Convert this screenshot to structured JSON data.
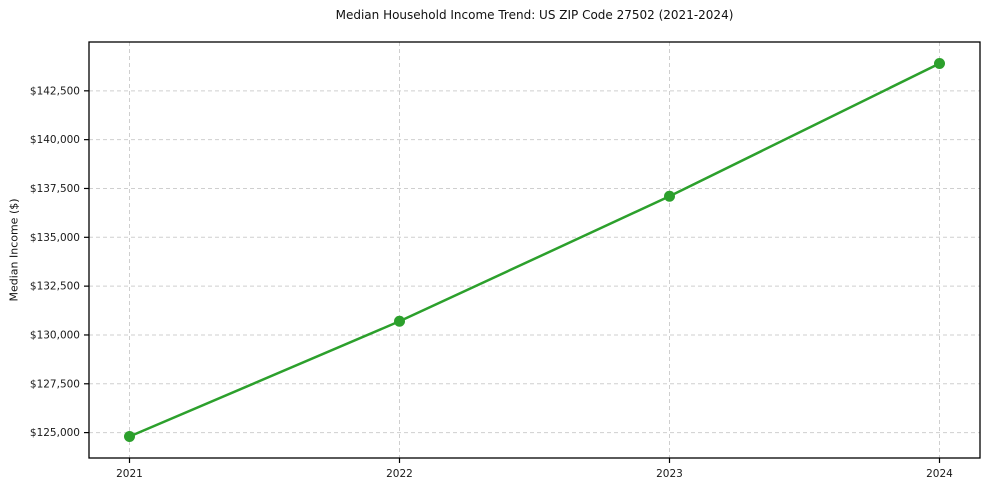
{
  "figure": {
    "title": "Median Household Income Trend: US ZIP Code 27502 (2021-2024)",
    "ylabel": "Median Income ($)"
  },
  "chart_data": {
    "type": "line",
    "title": "Median Household Income Trend: US ZIP Code 27502 (2021-2024)",
    "xlabel": "",
    "ylabel": "Median Income ($)",
    "x": [
      2021,
      2022,
      2023,
      2024
    ],
    "xtick_labels": [
      "2021",
      "2022",
      "2023",
      "2024"
    ],
    "series": [
      {
        "name": "Median Household Income",
        "values": [
          124800,
          130700,
          137100,
          143900
        ],
        "color": "#2ca02c",
        "marker": "circle"
      }
    ],
    "yticks": [
      125000,
      127500,
      130000,
      132500,
      135000,
      137500,
      140000,
      142500
    ],
    "ytick_labels": [
      "$125,000",
      "$127,500",
      "$130,000",
      "$132,500",
      "$135,000",
      "$137,500",
      "$140,000",
      "$142,500"
    ],
    "xlim": [
      2020.85,
      2024.15
    ],
    "ylim": [
      123700,
      145000
    ],
    "grid": true,
    "grid_linestyle": "dashed",
    "legend_position": "none"
  },
  "colors": {
    "line": "#2ca02c",
    "grid": "#cfcfcf",
    "axis": "#000000",
    "tick_text": "#1a1a1a",
    "background": "#ffffff"
  }
}
